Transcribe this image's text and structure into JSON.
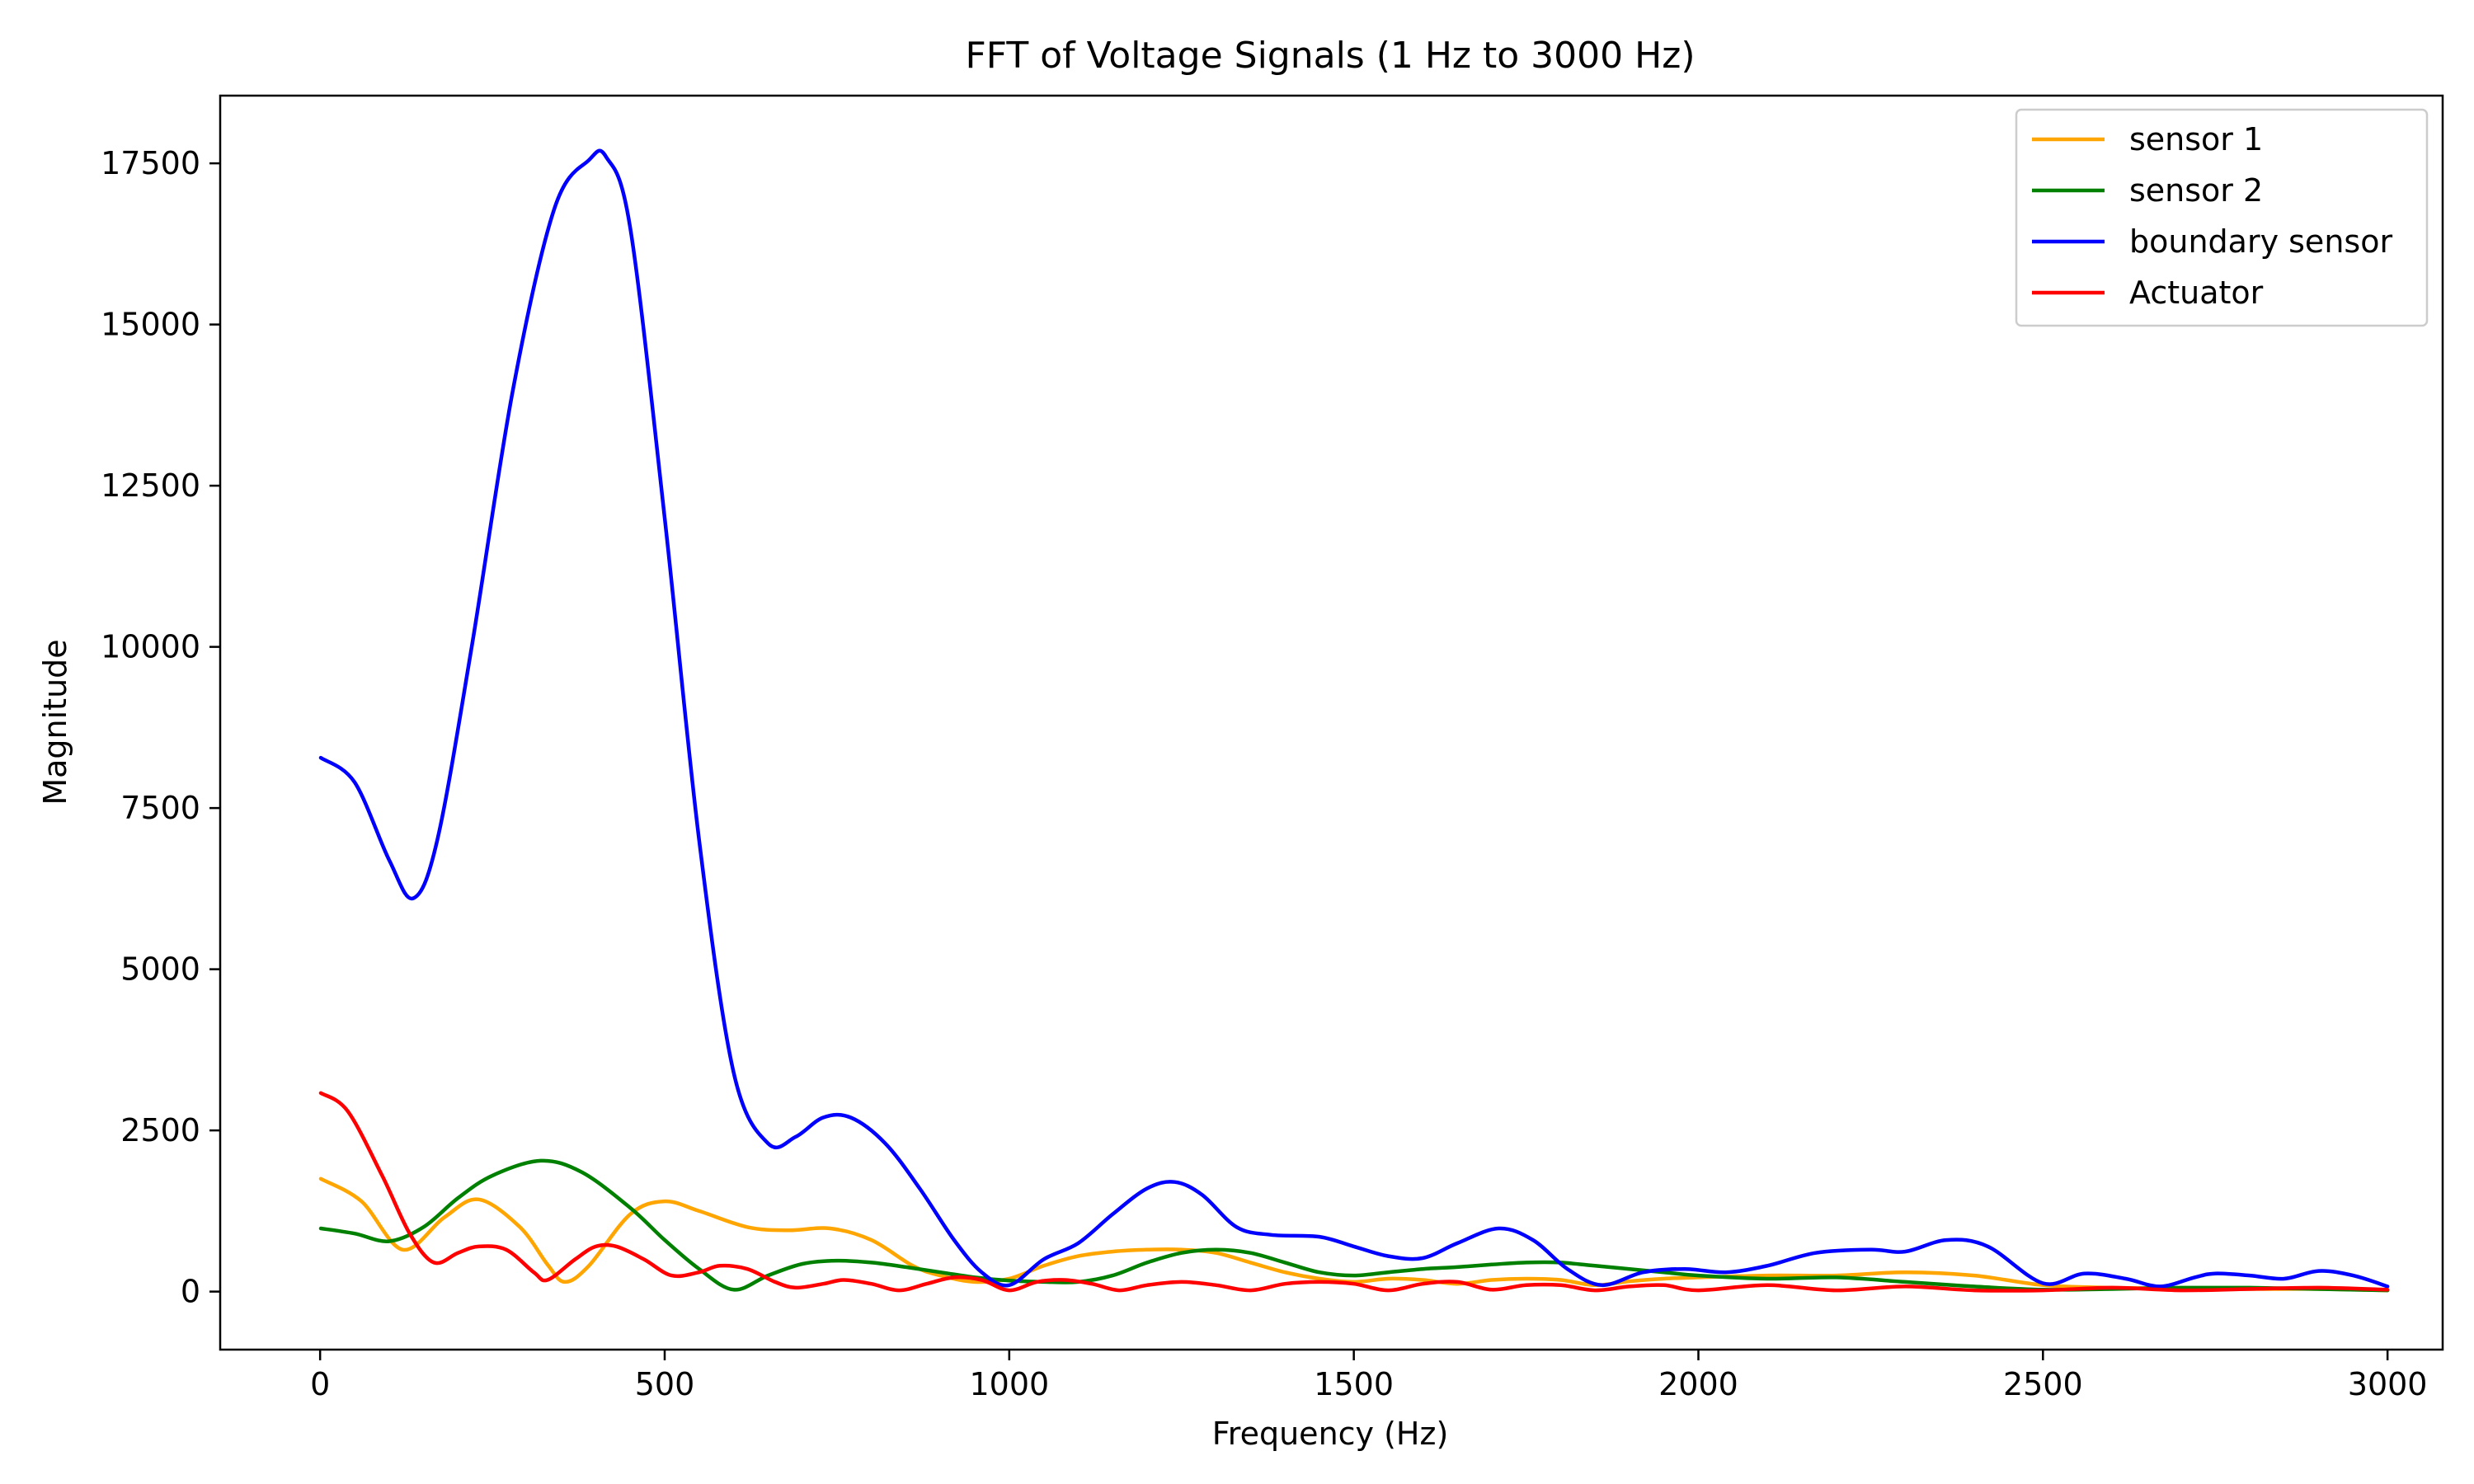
{
  "chart_data": {
    "type": "line",
    "title": "FFT of Voltage Signals (1 Hz to 3000 Hz)",
    "xlabel": "Frequency (Hz)",
    "ylabel": "Magnitude",
    "xlim": [
      -145,
      3080
    ],
    "ylim": [
      -900,
      18550
    ],
    "xticks": [
      0,
      500,
      1000,
      1500,
      2000,
      2500,
      3000
    ],
    "yticks": [
      0,
      2500,
      5000,
      7500,
      10000,
      12500,
      15000,
      17500
    ],
    "grid": false,
    "legend_position": "top-right",
    "series": [
      {
        "name": "sensor 1",
        "color": "#ffa500",
        "x": [
          1,
          60,
          120,
          180,
          230,
          290,
          330,
          355,
          390,
          450,
          500,
          550,
          620,
          680,
          740,
          800,
          860,
          900,
          950,
          1000,
          1050,
          1100,
          1150,
          1200,
          1250,
          1300,
          1350,
          1400,
          1450,
          1500,
          1550,
          1600,
          1650,
          1700,
          1750,
          1800,
          1850,
          1900,
          1950,
          2000,
          2100,
          2200,
          2300,
          2400,
          2500,
          2600,
          2700,
          2800,
          2900,
          3000
        ],
        "y": [
          1750,
          1400,
          650,
          1150,
          1430,
          1000,
          420,
          150,
          400,
          1200,
          1400,
          1250,
          1000,
          950,
          980,
          800,
          400,
          250,
          150,
          200,
          400,
          550,
          620,
          650,
          650,
          600,
          450,
          300,
          200,
          150,
          200,
          180,
          120,
          180,
          200,
          180,
          100,
          160,
          200,
          220,
          250,
          250,
          300,
          250,
          100,
          60,
          50,
          40,
          40,
          20
        ]
      },
      {
        "name": "sensor 2",
        "color": "#008000",
        "x": [
          1,
          50,
          100,
          150,
          200,
          250,
          320,
          380,
          450,
          500,
          550,
          600,
          650,
          700,
          750,
          800,
          850,
          900,
          950,
          1000,
          1050,
          1100,
          1150,
          1200,
          1250,
          1300,
          1350,
          1400,
          1450,
          1500,
          1550,
          1600,
          1650,
          1700,
          1750,
          1800,
          1850,
          1900,
          1950,
          2000,
          2100,
          2200,
          2300,
          2400,
          2500,
          2600,
          2700,
          2800,
          2900,
          3000
        ],
        "y": [
          980,
          900,
          780,
          1000,
          1450,
          1800,
          2030,
          1850,
          1300,
          800,
          350,
          30,
          250,
          430,
          480,
          450,
          380,
          300,
          220,
          170,
          150,
          150,
          250,
          450,
          600,
          650,
          600,
          450,
          300,
          250,
          300,
          350,
          380,
          420,
          450,
          450,
          400,
          350,
          300,
          250,
          200,
          220,
          150,
          80,
          30,
          40,
          60,
          60,
          40,
          20
        ]
      },
      {
        "name": "boundary sensor",
        "color": "#0000ff",
        "x": [
          1,
          50,
          100,
          135,
          170,
          220,
          280,
          340,
          390,
          415,
          450,
          500,
          550,
          600,
          650,
          690,
          730,
          770,
          820,
          870,
          920,
          960,
          1000,
          1050,
          1100,
          1150,
          1200,
          1240,
          1280,
          1330,
          1380,
          1450,
          1500,
          1550,
          1600,
          1650,
          1710,
          1760,
          1810,
          1860,
          1920,
          1980,
          2040,
          2100,
          2170,
          2250,
          2300,
          2360,
          2420,
          2500,
          2560,
          2620,
          2670,
          2720,
          2750,
          2800,
          2850,
          2900,
          2950,
          3000
        ],
        "y": [
          8280,
          7900,
          6700,
          6100,
          7000,
          10000,
          14000,
          16800,
          17550,
          17600,
          16500,
          12000,
          7000,
          3400,
          2300,
          2400,
          2700,
          2700,
          2300,
          1600,
          800,
          300,
          100,
          500,
          750,
          1200,
          1600,
          1700,
          1500,
          1000,
          880,
          850,
          700,
          550,
          520,
          750,
          980,
          800,
          350,
          100,
          300,
          350,
          300,
          400,
          600,
          650,
          620,
          800,
          700,
          130,
          280,
          200,
          80,
          220,
          280,
          250,
          200,
          320,
          250,
          80
        ]
      },
      {
        "name": "Actuator",
        "color": "#ff0000",
        "x": [
          1,
          40,
          90,
          130,
          165,
          200,
          230,
          270,
          310,
          330,
          370,
          400,
          430,
          470,
          510,
          550,
          580,
          620,
          660,
          690,
          730,
          760,
          800,
          840,
          880,
          920,
          960,
          1000,
          1040,
          1080,
          1120,
          1160,
          1200,
          1250,
          1300,
          1350,
          1400,
          1450,
          1500,
          1550,
          1600,
          1650,
          1700,
          1750,
          1800,
          1850,
          1900,
          1950,
          2000,
          2100,
          2200,
          2300,
          2400,
          2500,
          2600,
          2700,
          2800,
          2900,
          3000
        ],
        "y": [
          3080,
          2800,
          1800,
          900,
          450,
          600,
          700,
          650,
          300,
          180,
          500,
          700,
          700,
          500,
          250,
          300,
          400,
          350,
          150,
          60,
          120,
          180,
          120,
          20,
          120,
          220,
          180,
          20,
          150,
          180,
          120,
          20,
          100,
          150,
          100,
          20,
          120,
          150,
          120,
          20,
          120,
          150,
          30,
          100,
          100,
          20,
          80,
          100,
          20,
          100,
          20,
          80,
          20,
          20,
          60,
          20,
          40,
          60,
          30
        ]
      }
    ]
  }
}
